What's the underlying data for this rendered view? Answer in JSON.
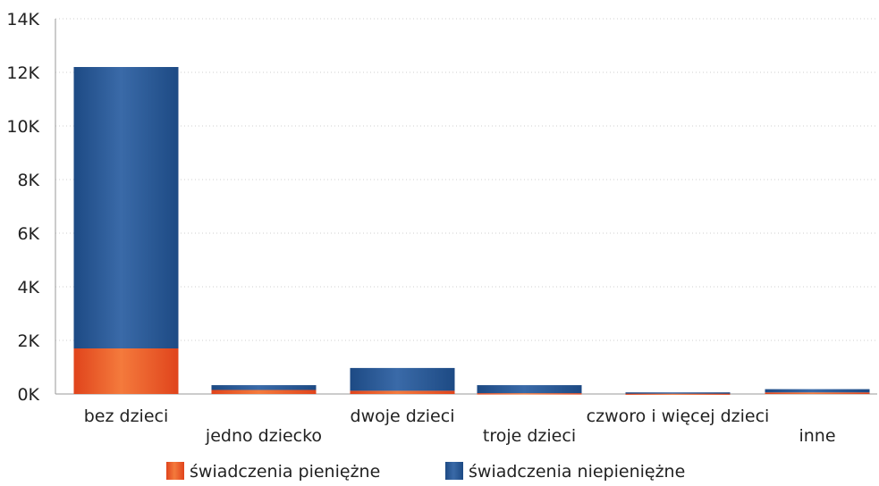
{
  "chart_data": {
    "type": "bar",
    "stacked": true,
    "categories": [
      "bez dzieci",
      "jedno dziecko",
      "dwoje dzieci",
      "troje dzieci",
      "czworo i więcej dzieci",
      "inne"
    ],
    "series": [
      {
        "name": "świadczenia pieniężne",
        "color": "#e8552a",
        "values": [
          1700,
          150,
          120,
          30,
          20,
          60
        ]
      },
      {
        "name": "świadczenia niepieniężne",
        "color": "#2c5a96",
        "values": [
          10500,
          180,
          850,
          300,
          40,
          120
        ]
      }
    ],
    "y_ticks": [
      "0K",
      "2K",
      "4K",
      "6K",
      "8K",
      "10K",
      "12K",
      "14K"
    ],
    "ylim": [
      0,
      14000
    ],
    "grid": true,
    "legend_position": "bottom"
  }
}
